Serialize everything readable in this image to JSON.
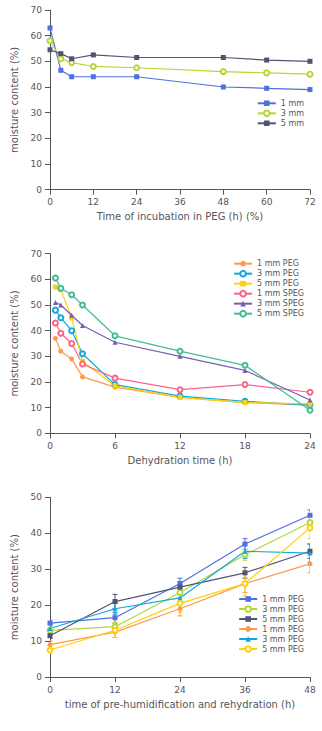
{
  "chart_data": [
    {
      "type": "line",
      "xlabel": "Time of incubation in PEG (h) (%)",
      "ylabel": "moisture content (%)",
      "xlim": [
        0,
        72
      ],
      "ylim": [
        0,
        70
      ],
      "xticks": [
        0,
        12,
        24,
        36,
        48,
        60,
        72
      ],
      "yticks": [
        0,
        10,
        20,
        30,
        40,
        50,
        60,
        70
      ],
      "grid": false,
      "legend": "center right",
      "series": [
        {
          "name": "1 mm",
          "x": [
            0,
            3,
            6,
            12,
            24,
            48,
            60,
            72
          ],
          "values": [
            63.0,
            46.5,
            44.0,
            44.0,
            44.0,
            40.0,
            39.5,
            39.0
          ],
          "marker": "square"
        },
        {
          "name": "3 mm",
          "x": [
            0,
            3,
            6,
            12,
            24,
            48,
            60,
            72
          ],
          "values": [
            58.0,
            51.0,
            49.5,
            48.0,
            47.5,
            46.0,
            45.5,
            45.0
          ],
          "marker": "open_circle"
        },
        {
          "name": "5 mm",
          "x": [
            0,
            3,
            6,
            12,
            24,
            48,
            60,
            72
          ],
          "values": [
            54.5,
            53.0,
            51.0,
            52.5,
            51.5,
            51.5,
            50.5,
            50.0
          ],
          "marker": "square"
        }
      ]
    },
    {
      "type": "line",
      "xlabel": "Dehydration time (h)",
      "ylabel": "moisture content (%)",
      "xlim": [
        0,
        24
      ],
      "ylim": [
        0,
        70
      ],
      "xticks": [
        0,
        6,
        12,
        18,
        24
      ],
      "yticks": [
        0,
        10,
        20,
        30,
        40,
        50,
        60,
        70
      ],
      "grid": false,
      "legend": "upper right",
      "series": [
        {
          "name": "1 mm PEG",
          "x": [
            0.5,
            1,
            2,
            3,
            6,
            12,
            18,
            24
          ],
          "values": [
            37.0,
            32.0,
            29.0,
            22.0,
            18.0,
            14.0,
            12.0,
            11.0
          ],
          "marker": "circle"
        },
        {
          "name": "3 mm PEG",
          "x": [
            0.5,
            1,
            2,
            3,
            6,
            12,
            18,
            24
          ],
          "values": [
            48.0,
            45.0,
            40.0,
            31.0,
            19.0,
            14.5,
            12.5,
            11.0
          ],
          "marker": "open_circle"
        },
        {
          "name": "5 mm PEG",
          "x": [
            0.5,
            1,
            2,
            3,
            6,
            12,
            18,
            24
          ],
          "values": [
            57.0,
            56.0,
            45.0,
            28.0,
            18.5,
            14.0,
            12.0,
            11.5
          ],
          "marker": "square"
        },
        {
          "name": "1 mm SPEG",
          "x": [
            0.5,
            1,
            2,
            3,
            6,
            12,
            18,
            24
          ],
          "values": [
            43.0,
            39.0,
            35.0,
            27.0,
            21.5,
            17.0,
            19.0,
            16.0
          ],
          "marker": "open_circle"
        },
        {
          "name": "3 mm SPEG",
          "x": [
            0.5,
            1,
            2,
            3,
            6,
            12,
            18,
            24
          ],
          "values": [
            51.0,
            50.0,
            46.0,
            42.0,
            35.5,
            30.0,
            24.5,
            13.0
          ],
          "marker": "triangle"
        },
        {
          "name": "5 mm SPEG",
          "x": [
            0.5,
            1,
            2,
            3,
            6,
            12,
            18,
            24
          ],
          "values": [
            60.5,
            56.5,
            54.0,
            50.0,
            38.0,
            32.0,
            26.5,
            9.0
          ],
          "marker": "open_circle"
        }
      ]
    },
    {
      "type": "line",
      "xlabel": "time of pre-humidification and rehydration (h)",
      "ylabel": "moisture content (%)",
      "xlim": [
        0,
        48
      ],
      "ylim": [
        0,
        50
      ],
      "xticks": [
        0,
        12,
        24,
        36,
        48
      ],
      "yticks": [
        0,
        10,
        20,
        30,
        40,
        50
      ],
      "grid": false,
      "legend": "lower right",
      "series": [
        {
          "name": "1 mm PEG",
          "x": [
            0,
            12,
            24,
            36,
            48
          ],
          "values": [
            15.0,
            16.5,
            26.0,
            37.0,
            45.0
          ],
          "yerr": [
            0.8,
            1.5,
            1.5,
            1.5,
            1.5
          ],
          "marker": "square"
        },
        {
          "name": "3 mm PEG",
          "x": [
            0,
            12,
            24,
            36,
            48
          ],
          "values": [
            13.0,
            14.0,
            23.5,
            34.0,
            43.0
          ],
          "yerr": [
            0.8,
            1.2,
            1.5,
            1.5,
            1.5
          ],
          "marker": "open_circle"
        },
        {
          "name": "5 mm PEG",
          "x": [
            0,
            12,
            24,
            36,
            48
          ],
          "values": [
            11.5,
            21.0,
            25.0,
            29.0,
            35.0
          ],
          "yerr": [
            0.8,
            2.0,
            1.5,
            1.5,
            2.0
          ],
          "marker": "square"
        },
        {
          "name": "1 mm PEG",
          "x": [
            0,
            12,
            24,
            36,
            48
          ],
          "values": [
            9.0,
            12.5,
            19.0,
            26.0,
            31.5
          ],
          "yerr": [
            1.0,
            1.5,
            2.0,
            2.5,
            2.5
          ],
          "marker": "circle"
        },
        {
          "name": "3 mm PEG",
          "x": [
            0,
            12,
            24,
            36,
            48
          ],
          "values": [
            13.5,
            19.0,
            22.0,
            35.0,
            34.5
          ],
          "yerr": [
            1.0,
            1.5,
            1.5,
            2.0,
            2.5
          ],
          "marker": "triangle"
        },
        {
          "name": "5 mm PEG",
          "x": [
            0,
            12,
            24,
            36,
            48
          ],
          "values": [
            7.5,
            13.0,
            20.5,
            26.0,
            41.5
          ],
          "yerr": [
            1.0,
            2.0,
            2.5,
            3.5,
            3.0
          ],
          "marker": "open_circle"
        }
      ]
    }
  ]
}
